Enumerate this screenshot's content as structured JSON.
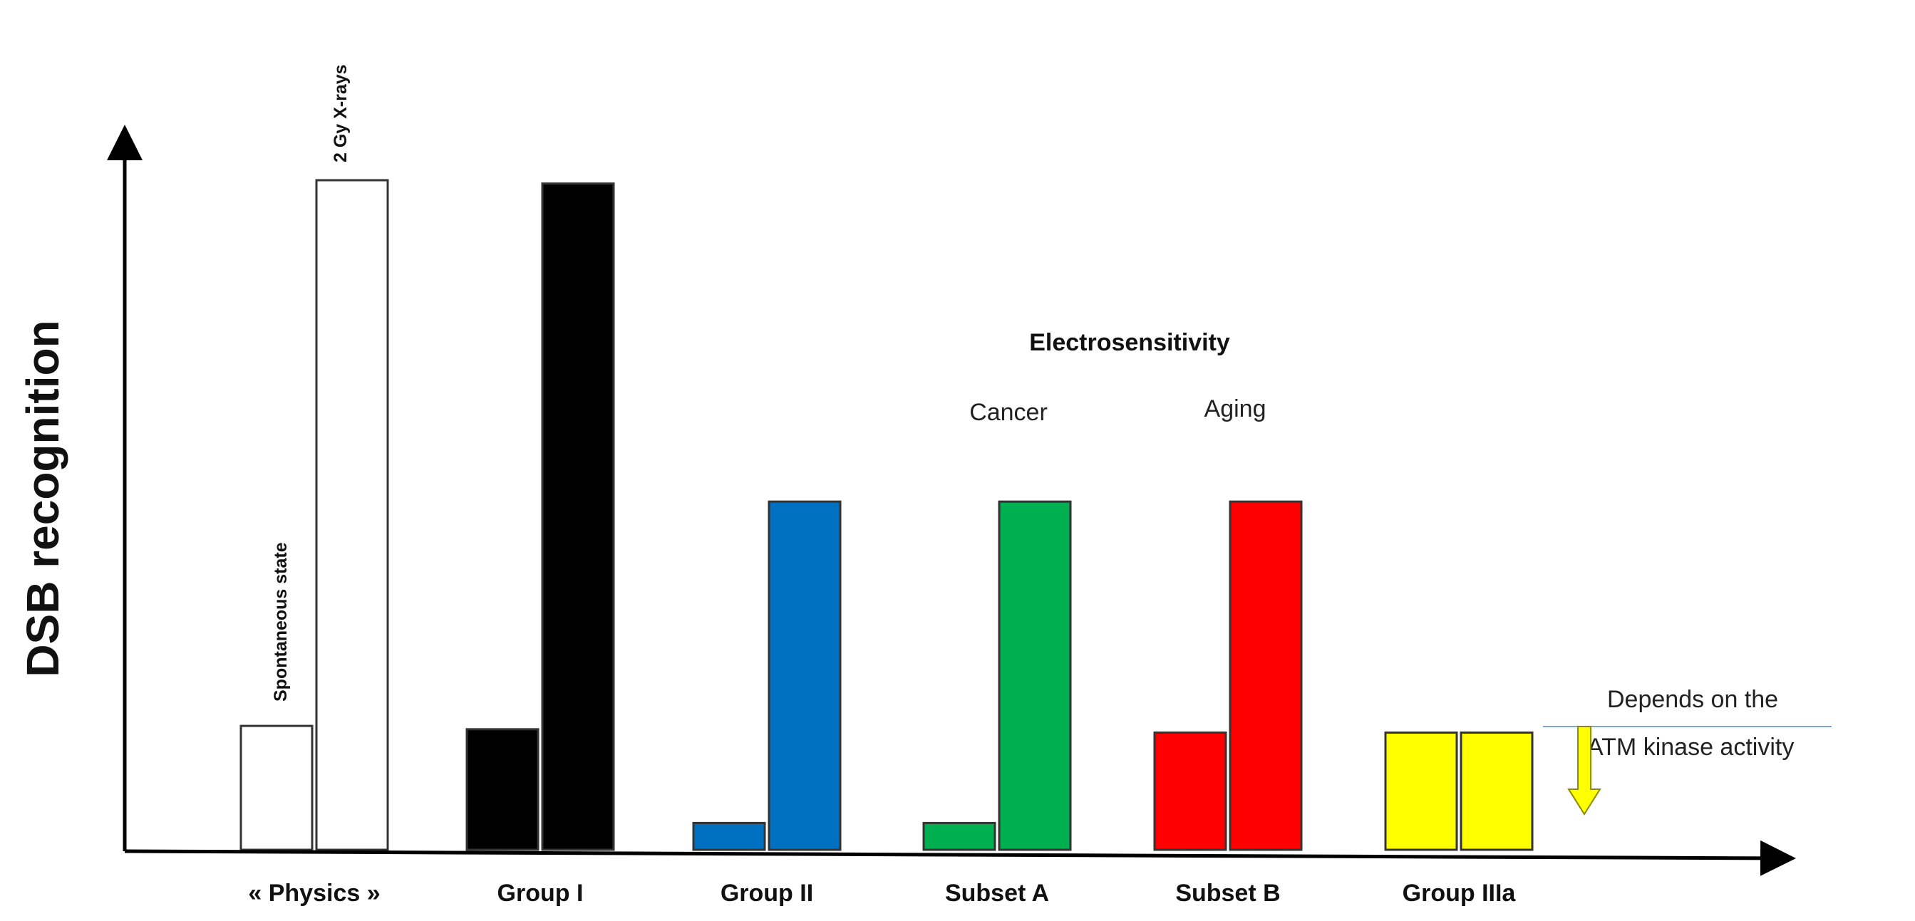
{
  "chart_data": {
    "type": "bar",
    "title": "",
    "ylabel": "DSB recognition",
    "xlabel": "",
    "ylim": [
      0,
      100
    ],
    "grid": false,
    "categories": [
      "« Physics »",
      "Group I",
      "Group II",
      "Subset A",
      "Subset B",
      "Group IIIa"
    ],
    "series": [
      {
        "name": "Spontaneous state",
        "values": [
          18.5,
          18,
          4,
          4,
          17.5,
          17.5
        ],
        "colors": [
          "#ffffff",
          "#000000",
          "#0070c0",
          "#00b050",
          "#ff0000",
          "#ffff00"
        ]
      },
      {
        "name": "2 Gy X-rays",
        "values": [
          100,
          99.5,
          52,
          52,
          52,
          17.5
        ],
        "colors": [
          "#ffffff",
          "#000000",
          "#0070c0",
          "#00b050",
          "#ff0000",
          "#ffff00"
        ]
      }
    ],
    "bar_annotations": {
      "spontaneous": "Spontaneous state",
      "irradiated": "2 Gy X-rays"
    },
    "annotations": {
      "electrosensitivity": "Electrosensitivity",
      "cancer": "Cancer",
      "aging": "Aging",
      "atm_line1": "Depends on the",
      "atm_line2": "ATM kinase activity"
    },
    "arrow_color": "#ffff00"
  }
}
